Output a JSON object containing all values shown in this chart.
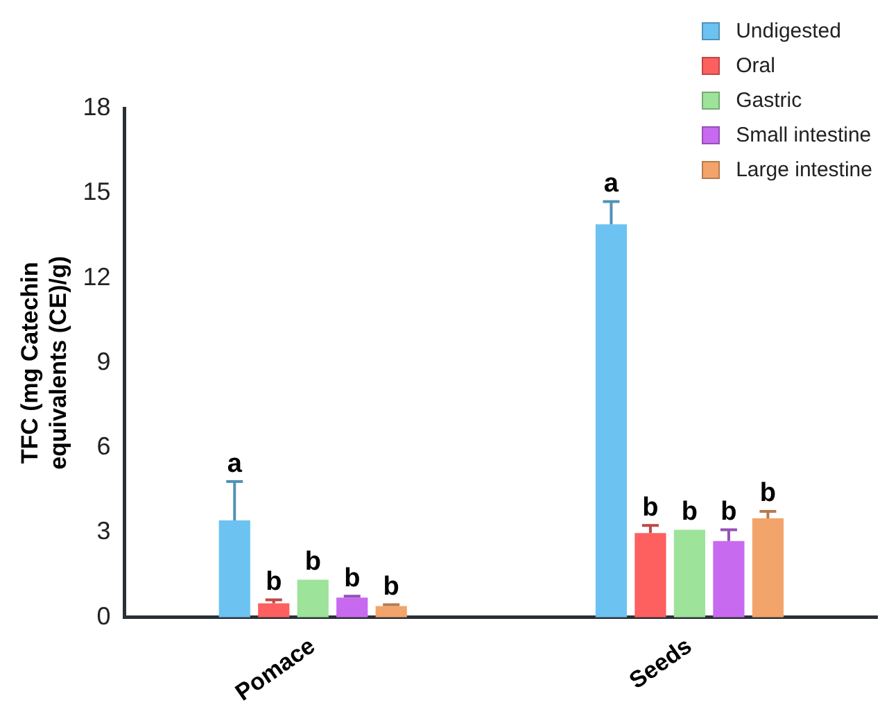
{
  "chart_data": {
    "type": "bar",
    "ylabel": "TFC (mg Catechin\nequivalents (CE)/g)",
    "categories": [
      "Pomace",
      "Seeds"
    ],
    "series": [
      {
        "name": "Undigested",
        "color": "#6cc3f2",
        "values": [
          3.43,
          13.9
        ],
        "errors": [
          1.37,
          0.8
        ],
        "value_labels": [
          "a",
          "a"
        ]
      },
      {
        "name": "Oral",
        "color": "#fe5f5f",
        "values": [
          0.5,
          2.98
        ],
        "errors": [
          0.12,
          0.27
        ],
        "value_labels": [
          "b",
          "b"
        ]
      },
      {
        "name": "Gastric",
        "color": "#9de39a",
        "values": [
          1.33,
          3.1
        ],
        "errors": [
          null,
          null
        ],
        "value_labels": [
          "b",
          "b"
        ]
      },
      {
        "name": "Small intestine",
        "color": "#c86af0",
        "values": [
          0.7,
          2.7
        ],
        "errors": [
          0.05,
          0.4
        ],
        "value_labels": [
          "b",
          "b"
        ]
      },
      {
        "name": "Large intestine",
        "color": "#f3a46a",
        "values": [
          0.4,
          3.5
        ],
        "errors": [
          0.05,
          0.25
        ],
        "value_labels": [
          "b",
          "b"
        ]
      }
    ],
    "ylim": [
      0,
      18
    ],
    "yticks": [
      0,
      3,
      6,
      9,
      12,
      15,
      18
    ],
    "grid": false,
    "legend": "top right"
  }
}
